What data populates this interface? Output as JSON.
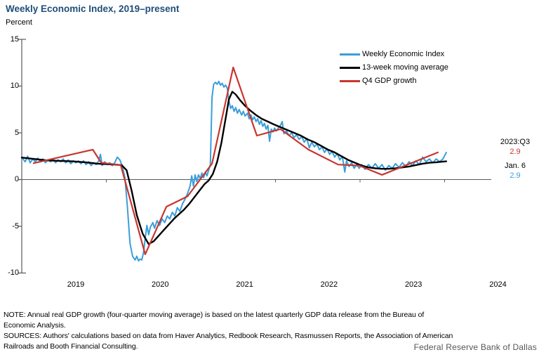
{
  "title": "Weekly Economic Index, 2019–present",
  "y_axis": {
    "label": "Percent",
    "ticks": [
      15,
      10,
      5,
      0,
      -5,
      -10
    ],
    "min": -10,
    "max": 15
  },
  "x_axis": {
    "years": [
      "2019",
      "2020",
      "2021",
      "2022",
      "2023",
      "2024"
    ]
  },
  "legend": [
    {
      "label": "Weekly Economic Index",
      "color": "#3A9FD9"
    },
    {
      "label": "13-week moving average",
      "color": "#000000"
    },
    {
      "label": "Q4 GDP growth",
      "color": "#C8362E"
    }
  ],
  "annotations": {
    "gdp_label": "2023:Q3",
    "gdp_value": "2.9",
    "wei_label": "Jan. 6",
    "wei_value": "2.9",
    "gdp_color": "#C8362E",
    "wei_color": "#3A9FD9"
  },
  "notes": {
    "line1": "NOTE: Annual real GDP growth (four-quarter moving average) is based on the latest quarterly GDP data release from the Bureau of",
    "line2": "Economic Analysis.",
    "line3": "SOURCES: Authors' calculations based on data from Haver Analytics, Redbook Research, Rasmussen Reports, the Association of American",
    "line4": "Railroads and Booth Financial Consulting."
  },
  "footer": "Federal Reserve Bank of Dallas",
  "colors": {
    "title": "#1F4E79",
    "axis": "#58595B",
    "wei": "#3A9FD9",
    "ma": "#000000",
    "gdp": "#C8362E"
  },
  "chart_data": {
    "type": "line",
    "x_unit": "decimal_year",
    "xlim": [
      2019.0,
      2024.55
    ],
    "ylim": [
      -10,
      15
    ],
    "zero_line": true,
    "grid": false,
    "legend_position": "top-right",
    "series": [
      {
        "name": "Weekly Economic Index",
        "color": "#3A9FD9",
        "width": 2,
        "points": [
          [
            2019.0,
            2.4
          ],
          [
            2019.04,
            1.9
          ],
          [
            2019.07,
            2.5
          ],
          [
            2019.1,
            1.8
          ],
          [
            2019.13,
            2.2
          ],
          [
            2019.16,
            1.9
          ],
          [
            2019.19,
            2.3
          ],
          [
            2019.22,
            1.9
          ],
          [
            2019.25,
            2.2
          ],
          [
            2019.28,
            1.8
          ],
          [
            2019.31,
            2.1
          ],
          [
            2019.34,
            1.9
          ],
          [
            2019.37,
            2.2
          ],
          [
            2019.4,
            1.8
          ],
          [
            2019.43,
            2.1
          ],
          [
            2019.46,
            1.9
          ],
          [
            2019.49,
            2.2
          ],
          [
            2019.52,
            1.8
          ],
          [
            2019.55,
            2.1
          ],
          [
            2019.58,
            1.7
          ],
          [
            2019.61,
            2.0
          ],
          [
            2019.64,
            1.8
          ],
          [
            2019.67,
            2.0
          ],
          [
            2019.7,
            1.7
          ],
          [
            2019.73,
            2.0
          ],
          [
            2019.76,
            1.6
          ],
          [
            2019.79,
            1.9
          ],
          [
            2019.82,
            1.5
          ],
          [
            2019.85,
            1.8
          ],
          [
            2019.88,
            1.6
          ],
          [
            2019.91,
            2.0
          ],
          [
            2019.93,
            2.7
          ],
          [
            2019.95,
            1.5
          ],
          [
            2019.98,
            1.9
          ],
          [
            2020.01,
            1.6
          ],
          [
            2020.04,
            1.8
          ],
          [
            2020.07,
            1.5
          ],
          [
            2020.1,
            1.8
          ],
          [
            2020.13,
            2.4
          ],
          [
            2020.16,
            2.1
          ],
          [
            2020.19,
            1.4
          ],
          [
            2020.22,
            0.2
          ],
          [
            2020.25,
            -3.0
          ],
          [
            2020.28,
            -6.8
          ],
          [
            2020.31,
            -8.2
          ],
          [
            2020.34,
            -8.6
          ],
          [
            2020.36,
            -8.2
          ],
          [
            2020.38,
            -8.7
          ],
          [
            2020.4,
            -8.5
          ],
          [
            2020.42,
            -8.6
          ],
          [
            2020.44,
            -7.8
          ],
          [
            2020.46,
            -6.3
          ],
          [
            2020.48,
            -4.9
          ],
          [
            2020.5,
            -5.9
          ],
          [
            2020.52,
            -5.1
          ],
          [
            2020.55,
            -4.6
          ],
          [
            2020.57,
            -5.2
          ],
          [
            2020.6,
            -4.4
          ],
          [
            2020.63,
            -4.9
          ],
          [
            2020.66,
            -4.2
          ],
          [
            2020.69,
            -4.6
          ],
          [
            2020.72,
            -3.9
          ],
          [
            2020.75,
            -4.2
          ],
          [
            2020.78,
            -3.5
          ],
          [
            2020.81,
            -3.9
          ],
          [
            2020.84,
            -3.0
          ],
          [
            2020.87,
            -3.4
          ],
          [
            2020.9,
            -2.6
          ],
          [
            2020.93,
            -2.1
          ],
          [
            2020.96,
            -1.5
          ],
          [
            2020.99,
            -0.7
          ],
          [
            2021.01,
            0.4
          ],
          [
            2021.03,
            -0.7
          ],
          [
            2021.05,
            0.5
          ],
          [
            2021.07,
            -0.2
          ],
          [
            2021.09,
            0.5
          ],
          [
            2021.11,
            0.1
          ],
          [
            2021.13,
            0.7
          ],
          [
            2021.15,
            0.2
          ],
          [
            2021.17,
            0.8
          ],
          [
            2021.19,
            0.4
          ],
          [
            2021.21,
            1.0
          ],
          [
            2021.23,
            1.6
          ],
          [
            2021.25,
            8.8
          ],
          [
            2021.27,
            10.2
          ],
          [
            2021.29,
            10.4
          ],
          [
            2021.31,
            10.2
          ],
          [
            2021.33,
            10.5
          ],
          [
            2021.35,
            10.1
          ],
          [
            2021.37,
            10.3
          ],
          [
            2021.39,
            9.9
          ],
          [
            2021.41,
            10.1
          ],
          [
            2021.43,
            9.8
          ],
          [
            2021.45,
            8.4
          ],
          [
            2021.47,
            7.6
          ],
          [
            2021.49,
            7.9
          ],
          [
            2021.51,
            7.3
          ],
          [
            2021.53,
            7.7
          ],
          [
            2021.55,
            7.1
          ],
          [
            2021.57,
            7.5
          ],
          [
            2021.6,
            6.9
          ],
          [
            2021.62,
            7.3
          ],
          [
            2021.64,
            6.8
          ],
          [
            2021.67,
            7.1
          ],
          [
            2021.69,
            6.5
          ],
          [
            2021.71,
            6.9
          ],
          [
            2021.73,
            6.4
          ],
          [
            2021.75,
            6.7
          ],
          [
            2021.77,
            6.2
          ],
          [
            2021.79,
            6.5
          ],
          [
            2021.81,
            5.9
          ],
          [
            2021.83,
            6.3
          ],
          [
            2021.85,
            5.7
          ],
          [
            2021.87,
            6.0
          ],
          [
            2021.89,
            5.4
          ],
          [
            2021.91,
            5.8
          ],
          [
            2021.93,
            4.1
          ],
          [
            2021.95,
            5.4
          ],
          [
            2021.97,
            5.1
          ],
          [
            2021.99,
            5.5
          ],
          [
            2022.01,
            5.2
          ],
          [
            2022.04,
            5.6
          ],
          [
            2022.06,
            5.8
          ],
          [
            2022.08,
            6.2
          ],
          [
            2022.1,
            4.9
          ],
          [
            2022.13,
            5.2
          ],
          [
            2022.16,
            4.7
          ],
          [
            2022.19,
            5.0
          ],
          [
            2022.22,
            4.5
          ],
          [
            2022.25,
            4.8
          ],
          [
            2022.28,
            4.3
          ],
          [
            2022.31,
            4.6
          ],
          [
            2022.34,
            4.0
          ],
          [
            2022.37,
            4.4
          ],
          [
            2022.4,
            3.4
          ],
          [
            2022.43,
            4.0
          ],
          [
            2022.46,
            3.5
          ],
          [
            2022.49,
            3.8
          ],
          [
            2022.52,
            3.2
          ],
          [
            2022.55,
            3.5
          ],
          [
            2022.58,
            2.9
          ],
          [
            2022.61,
            3.3
          ],
          [
            2022.64,
            2.7
          ],
          [
            2022.67,
            3.0
          ],
          [
            2022.7,
            2.4
          ],
          [
            2022.73,
            2.8
          ],
          [
            2022.76,
            2.1
          ],
          [
            2022.79,
            2.5
          ],
          [
            2022.82,
            0.8
          ],
          [
            2022.84,
            2.0
          ],
          [
            2022.87,
            1.4
          ],
          [
            2022.9,
            1.8
          ],
          [
            2022.93,
            1.2
          ],
          [
            2022.96,
            1.6
          ],
          [
            2022.99,
            1.2
          ],
          [
            2023.02,
            1.6
          ],
          [
            2023.06,
            1.1
          ],
          [
            2023.1,
            1.6
          ],
          [
            2023.14,
            1.2
          ],
          [
            2023.18,
            1.7
          ],
          [
            2023.22,
            1.2
          ],
          [
            2023.26,
            1.6
          ],
          [
            2023.3,
            1.0
          ],
          [
            2023.34,
            1.5
          ],
          [
            2023.38,
            1.2
          ],
          [
            2023.42,
            1.7
          ],
          [
            2023.46,
            1.3
          ],
          [
            2023.5,
            1.8
          ],
          [
            2023.54,
            1.4
          ],
          [
            2023.58,
            1.9
          ],
          [
            2023.62,
            1.5
          ],
          [
            2023.66,
            2.0
          ],
          [
            2023.7,
            1.6
          ],
          [
            2023.74,
            2.4
          ],
          [
            2023.78,
            1.9
          ],
          [
            2023.82,
            2.2
          ],
          [
            2023.86,
            1.8
          ],
          [
            2023.9,
            2.2
          ],
          [
            2023.94,
            1.9
          ],
          [
            2023.98,
            2.2
          ],
          [
            2024.02,
            2.9
          ]
        ]
      },
      {
        "name": "13-week moving average",
        "color": "#000000",
        "width": 2.4,
        "points": [
          [
            2019.0,
            2.35
          ],
          [
            2019.1,
            2.25
          ],
          [
            2019.2,
            2.15
          ],
          [
            2019.3,
            2.05
          ],
          [
            2019.45,
            2.0
          ],
          [
            2019.6,
            1.95
          ],
          [
            2019.75,
            1.85
          ],
          [
            2019.9,
            1.7
          ],
          [
            2020.0,
            1.65
          ],
          [
            2020.1,
            1.6
          ],
          [
            2020.18,
            1.55
          ],
          [
            2020.24,
            1.0
          ],
          [
            2020.3,
            -1.2
          ],
          [
            2020.36,
            -3.8
          ],
          [
            2020.43,
            -5.8
          ],
          [
            2020.5,
            -6.9
          ],
          [
            2020.56,
            -6.6
          ],
          [
            2020.62,
            -6.0
          ],
          [
            2020.68,
            -5.4
          ],
          [
            2020.74,
            -4.8
          ],
          [
            2020.8,
            -4.2
          ],
          [
            2020.86,
            -3.7
          ],
          [
            2020.92,
            -3.2
          ],
          [
            2020.98,
            -2.6
          ],
          [
            2021.04,
            -1.9
          ],
          [
            2021.1,
            -1.2
          ],
          [
            2021.16,
            -0.5
          ],
          [
            2021.21,
            -0.1
          ],
          [
            2021.26,
            0.6
          ],
          [
            2021.31,
            1.9
          ],
          [
            2021.36,
            3.9
          ],
          [
            2021.41,
            6.5
          ],
          [
            2021.45,
            8.6
          ],
          [
            2021.49,
            9.4
          ],
          [
            2021.53,
            9.1
          ],
          [
            2021.58,
            8.5
          ],
          [
            2021.64,
            7.9
          ],
          [
            2021.7,
            7.4
          ],
          [
            2021.77,
            6.9
          ],
          [
            2021.84,
            6.5
          ],
          [
            2021.91,
            6.2
          ],
          [
            2021.98,
            5.9
          ],
          [
            2022.06,
            5.6
          ],
          [
            2022.14,
            5.3
          ],
          [
            2022.22,
            5.0
          ],
          [
            2022.3,
            4.7
          ],
          [
            2022.38,
            4.3
          ],
          [
            2022.46,
            4.0
          ],
          [
            2022.54,
            3.6
          ],
          [
            2022.62,
            3.2
          ],
          [
            2022.7,
            2.9
          ],
          [
            2022.78,
            2.5
          ],
          [
            2022.86,
            2.1
          ],
          [
            2022.94,
            1.8
          ],
          [
            2023.02,
            1.5
          ],
          [
            2023.1,
            1.3
          ],
          [
            2023.18,
            1.2
          ],
          [
            2023.26,
            1.15
          ],
          [
            2023.34,
            1.15
          ],
          [
            2023.42,
            1.2
          ],
          [
            2023.5,
            1.3
          ],
          [
            2023.58,
            1.4
          ],
          [
            2023.66,
            1.55
          ],
          [
            2023.74,
            1.7
          ],
          [
            2023.82,
            1.8
          ],
          [
            2023.9,
            1.85
          ],
          [
            2023.96,
            1.9
          ],
          [
            2024.02,
            1.95
          ]
        ]
      },
      {
        "name": "Q4 GDP growth",
        "color": "#C8362E",
        "width": 2.2,
        "points": [
          [
            2019.14,
            1.75
          ],
          [
            2019.84,
            3.2
          ],
          [
            2019.94,
            1.8
          ],
          [
            2020.17,
            1.55
          ],
          [
            2020.46,
            -8.0
          ],
          [
            2020.71,
            -2.9
          ],
          [
            2020.96,
            -1.8
          ],
          [
            2021.25,
            1.7
          ],
          [
            2021.5,
            12.0
          ],
          [
            2021.78,
            4.7
          ],
          [
            2022.06,
            5.4
          ],
          [
            2022.39,
            3.2
          ],
          [
            2022.74,
            1.6
          ],
          [
            2022.99,
            1.5
          ],
          [
            2023.26,
            0.5
          ],
          [
            2023.92,
            2.9
          ]
        ]
      }
    ]
  }
}
